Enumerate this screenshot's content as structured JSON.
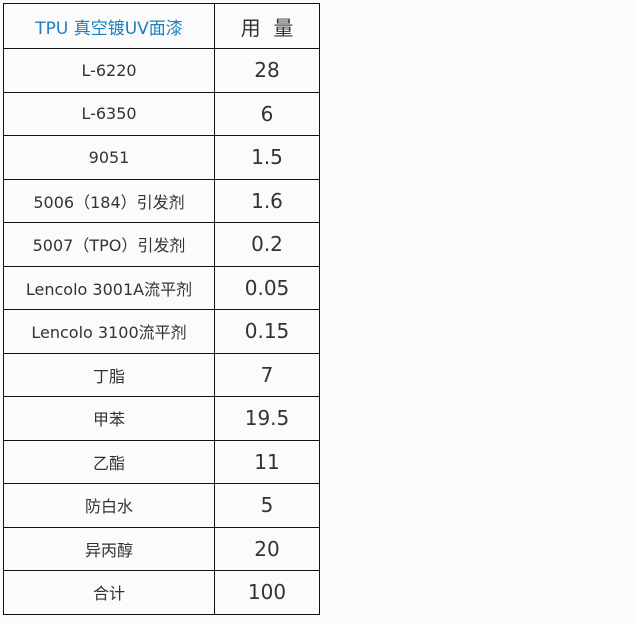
{
  "table": {
    "header": {
      "name": "TPU 真空镀UV面漆",
      "amount": "用  量"
    },
    "rows": [
      {
        "name": "L-6220",
        "amount": "28"
      },
      {
        "name": "L-6350",
        "amount": "6"
      },
      {
        "name": "9051",
        "amount": "1.5"
      },
      {
        "name": "5006（184）引发剂",
        "amount": "1.6"
      },
      {
        "name": "5007（TPO）引发剂",
        "amount": "0.2"
      },
      {
        "name": "Lencolo 3001A流平剂",
        "amount": "0.05"
      },
      {
        "name": "Lencolo 3100流平剂",
        "amount": "0.15"
      },
      {
        "name": "丁脂",
        "amount": "7"
      },
      {
        "name": "甲苯",
        "amount": "19.5"
      },
      {
        "name": "乙酯",
        "amount": "11"
      },
      {
        "name": "防白水",
        "amount": "5"
      },
      {
        "name": "异丙醇",
        "amount": "20"
      },
      {
        "name": "合计",
        "amount": "100"
      }
    ]
  },
  "colors": {
    "header_text": "#1b7fbd",
    "border": "#111111"
  }
}
